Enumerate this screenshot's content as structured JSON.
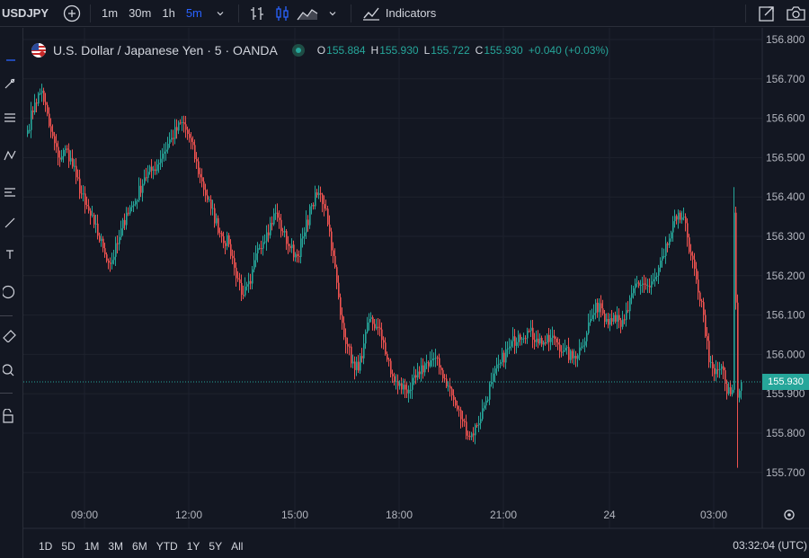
{
  "toolbar": {
    "symbol": "USDJPY",
    "intervals": [
      {
        "label": "1m",
        "active": false
      },
      {
        "label": "30m",
        "active": false
      },
      {
        "label": "1h",
        "active": false
      },
      {
        "label": "5m",
        "active": true
      }
    ],
    "indicators_label": "Indicators"
  },
  "legend": {
    "title": "U.S. Dollar / Japanese Yen · 5 · OANDA",
    "open_label": "O",
    "open": "155.884",
    "high_label": "H",
    "high": "155.930",
    "low_label": "L",
    "low": "155.722",
    "close_label": "C",
    "close": "155.930",
    "change": "+0.040 (+0.03%)"
  },
  "colors": {
    "up": "#26a69a",
    "down": "#ef5350",
    "background": "#131722",
    "grid": "#1e222d",
    "accent": "#2962ff"
  },
  "chart_data": {
    "type": "candlestick",
    "instrument": "USDJPY",
    "interval": "5m",
    "ylim": [
      155.65,
      156.83
    ],
    "y_ticks": [
      "156.800",
      "156.700",
      "156.600",
      "156.500",
      "156.400",
      "156.300",
      "156.200",
      "156.100",
      "156.000",
      "155.900",
      "155.800",
      "155.700"
    ],
    "x_ticks": [
      "09:00",
      "12:00",
      "15:00",
      "18:00",
      "21:00",
      "24",
      "03:00"
    ],
    "current_price": "155.930",
    "anchors": [
      [
        0,
        156.57
      ],
      [
        4,
        156.64
      ],
      [
        8,
        156.67
      ],
      [
        12,
        156.58
      ],
      [
        17,
        156.5
      ],
      [
        22,
        156.52
      ],
      [
        27,
        156.45
      ],
      [
        32,
        156.38
      ],
      [
        37,
        156.33
      ],
      [
        42,
        156.27
      ],
      [
        46,
        156.23
      ],
      [
        50,
        156.28
      ],
      [
        55,
        156.36
      ],
      [
        60,
        156.39
      ],
      [
        65,
        156.45
      ],
      [
        70,
        156.47
      ],
      [
        75,
        156.51
      ],
      [
        80,
        156.55
      ],
      [
        86,
        156.59
      ],
      [
        90,
        156.55
      ],
      [
        96,
        156.45
      ],
      [
        102,
        156.37
      ],
      [
        108,
        156.3
      ],
      [
        112,
        156.28
      ],
      [
        115,
        156.22
      ],
      [
        120,
        156.15
      ],
      [
        124,
        156.18
      ],
      [
        128,
        156.27
      ],
      [
        133,
        156.31
      ],
      [
        138,
        156.36
      ],
      [
        142,
        156.31
      ],
      [
        146,
        156.27
      ],
      [
        150,
        156.25
      ],
      [
        154,
        156.31
      ],
      [
        158,
        156.38
      ],
      [
        162,
        156.41
      ],
      [
        166,
        156.37
      ],
      [
        170,
        156.25
      ],
      [
        174,
        156.1
      ],
      [
        178,
        156.02
      ],
      [
        182,
        155.96
      ],
      [
        186,
        155.99
      ],
      [
        190,
        156.09
      ],
      [
        194,
        156.07
      ],
      [
        198,
        156.03
      ],
      [
        202,
        155.95
      ],
      [
        206,
        155.92
      ],
      [
        212,
        155.91
      ],
      [
        218,
        155.95
      ],
      [
        222,
        155.98
      ],
      [
        226,
        155.99
      ],
      [
        230,
        155.96
      ],
      [
        234,
        155.92
      ],
      [
        238,
        155.87
      ],
      [
        242,
        155.83
      ],
      [
        246,
        155.79
      ],
      [
        250,
        155.82
      ],
      [
        254,
        155.87
      ],
      [
        258,
        155.93
      ],
      [
        263,
        155.98
      ],
      [
        268,
        156.02
      ],
      [
        273,
        156.05
      ],
      [
        278,
        156.06
      ],
      [
        283,
        156.04
      ],
      [
        288,
        156.03
      ],
      [
        293,
        156.04
      ],
      [
        298,
        156.01
      ],
      [
        303,
        155.99
      ],
      [
        308,
        156.02
      ],
      [
        313,
        156.09
      ],
      [
        318,
        156.13
      ],
      [
        322,
        156.09
      ],
      [
        326,
        156.1
      ],
      [
        330,
        156.07
      ],
      [
        334,
        156.11
      ],
      [
        338,
        156.18
      ],
      [
        342,
        156.18
      ],
      [
        346,
        156.17
      ],
      [
        350,
        156.2
      ],
      [
        354,
        156.25
      ],
      [
        358,
        156.31
      ],
      [
        362,
        156.36
      ],
      [
        365,
        156.35
      ],
      [
        368,
        156.26
      ],
      [
        372,
        156.19
      ],
      [
        376,
        156.1
      ],
      [
        379,
        155.98
      ],
      [
        382,
        155.95
      ],
      [
        386,
        155.97
      ],
      [
        389,
        155.9
      ],
      [
        392,
        155.91
      ],
      [
        393,
        156.36
      ],
      [
        395,
        155.89
      ],
      [
        397,
        155.93
      ]
    ]
  },
  "bottom": {
    "ranges": [
      "1D",
      "5D",
      "1M",
      "3M",
      "6M",
      "YTD",
      "1Y",
      "5Y",
      "All"
    ],
    "clock": "03:32:04 (UTC)"
  }
}
